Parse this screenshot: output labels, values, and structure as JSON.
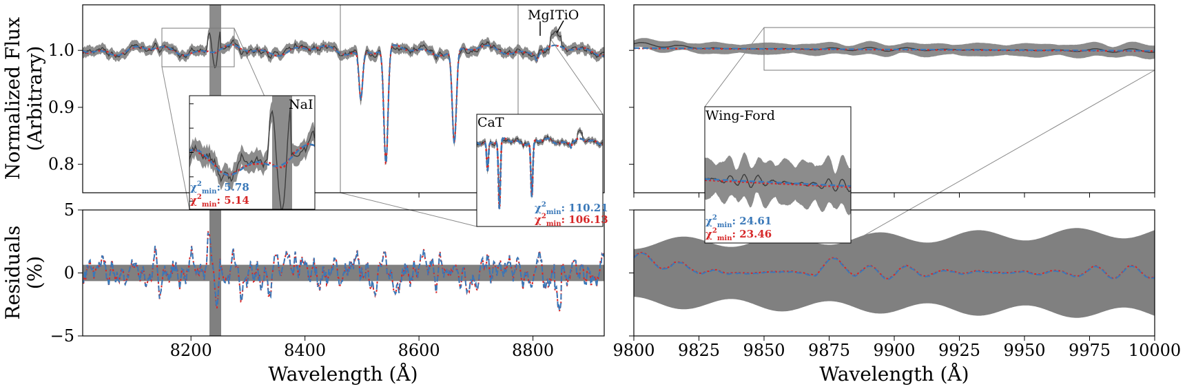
{
  "colors": {
    "band": "#8c8c8c",
    "shade": "#7f7f7f",
    "data_line": "#3d3d3d",
    "blue": "#3a78b8",
    "red": "#d62728"
  },
  "labels": {
    "ylabel_top": [
      "Normalized Flux",
      "(Arbitrary)"
    ],
    "ylabel_bottom": [
      "Residuals",
      "(%)"
    ],
    "xlabel": "Wavelength (Å)"
  },
  "chart_data": [
    {
      "type": "line",
      "panel": "top-left",
      "description": "Normalized spectrum (Ca triplet region) with two model fits",
      "xlim": [
        8010,
        8925
      ],
      "ylim": [
        0.75,
        1.08
      ],
      "yticks": [
        0.8,
        0.9,
        1.0
      ],
      "series": [],
      "shaded_x": [
        8230,
        8251
      ],
      "annotations": [
        "MgI",
        "TiO"
      ],
      "line_markers": [
        8815,
        8838
      ],
      "zoom_regions": [
        {
          "x": [
            8148,
            8276
          ],
          "y": [
            0.97,
            1.04
          ]
        },
        {
          "x": [
            8458,
            8925
          ],
          "y": [
            0.75,
            1.08
          ]
        },
        {
          "x": [
            8770,
            8925
          ],
          "y": [
            0.75,
            1.08
          ]
        }
      ]
    },
    {
      "type": "line",
      "panel": "inset-NaI",
      "label": "NaI",
      "xlim": [
        8148,
        8276
      ],
      "ylim": [
        0.97,
        1.04
      ],
      "shaded_x": [
        8230,
        8251
      ],
      "chi2": {
        "blue": "5.78",
        "red": "5.14"
      }
    },
    {
      "type": "line",
      "panel": "inset-CaT",
      "label": "CaT",
      "xlim": [
        8458,
        8925
      ],
      "ylim": [
        0.75,
        1.08
      ],
      "chi2": {
        "blue": "110.21",
        "red": "106.13"
      }
    },
    {
      "type": "line",
      "panel": "bottom-left",
      "description": "Residuals (%) for the Ca triplet region",
      "xlim": [
        8010,
        8925
      ],
      "ylim": [
        -5,
        5
      ],
      "yticks": [
        -5,
        0,
        5
      ],
      "xticks": [
        8200,
        8400,
        8600,
        8800
      ],
      "band_halfwidth": 0.65,
      "shaded_x": [
        8230,
        8251
      ]
    },
    {
      "type": "line",
      "panel": "top-right",
      "description": "Normalized spectrum (Wing-Ford band region)",
      "xlim": [
        9800,
        10000
      ],
      "ylim": [
        0.75,
        1.08
      ],
      "zoom_region": {
        "x": [
          9850,
          10000
        ],
        "y": [
          0.97,
          1.04
        ]
      }
    },
    {
      "type": "line",
      "panel": "inset-WingFord",
      "label": "Wing-Ford",
      "xlim": [
        9850,
        10000
      ],
      "ylim": [
        0.97,
        1.04
      ],
      "chi2": {
        "blue": "24.61",
        "red": "23.46"
      }
    },
    {
      "type": "line",
      "panel": "bottom-right",
      "description": "Residuals (%) for the Wing-Ford region",
      "xlim": [
        9800,
        10000
      ],
      "ylim": [
        -5,
        5
      ],
      "xticks": [
        9800,
        9825,
        9850,
        9875,
        9900,
        9925,
        9950,
        9975,
        10000
      ]
    }
  ]
}
